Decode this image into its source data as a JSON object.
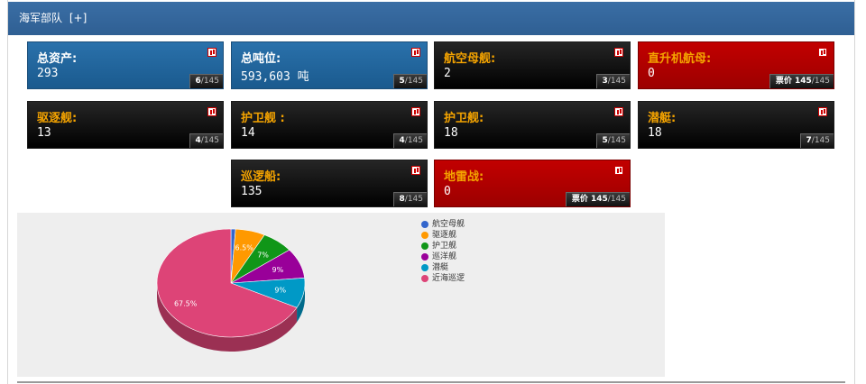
{
  "header": {
    "title": "海军部队",
    "toggle": "[+]"
  },
  "cards": [
    {
      "id": "total-assets",
      "label": "总资产:",
      "value": "293",
      "rank": "6",
      "total": "/145",
      "style": "blue"
    },
    {
      "id": "total-tonnage",
      "label": "总吨位:",
      "value": "593,603 吨",
      "rank": "5",
      "total": "/145",
      "style": "blue"
    },
    {
      "id": "aircraft-carriers",
      "label": "航空母舰:",
      "value": "2",
      "rank": "3",
      "total": "/145",
      "style": "black"
    },
    {
      "id": "helicopter-carriers",
      "label": "直升机航母:",
      "value": "0",
      "rank": "票价 145",
      "total": "/145",
      "style": "red"
    },
    {
      "id": "destroyers",
      "label": "驱逐舰:",
      "value": "13",
      "rank": "4",
      "total": "/145",
      "style": "black"
    },
    {
      "id": "frigates",
      "label": "护卫舰 :",
      "value": "14",
      "rank": "4",
      "total": "/145",
      "style": "black"
    },
    {
      "id": "corvettes",
      "label": "护卫舰:",
      "value": "18",
      "rank": "5",
      "total": "/145",
      "style": "black"
    },
    {
      "id": "submarines",
      "label": "潜艇:",
      "value": "18",
      "rank": "7",
      "total": "/145",
      "style": "black"
    },
    {
      "id": "patrol-vessels",
      "label": "巡逻船:",
      "value": "135",
      "rank": "8",
      "total": "/145",
      "style": "black"
    },
    {
      "id": "mine-warfare",
      "label": "地雷战:",
      "value": "0",
      "rank": "票价 145",
      "total": "/145",
      "style": "red"
    }
  ],
  "chart_data": {
    "type": "pie",
    "slices": [
      {
        "name": "航空母舰",
        "value": 1,
        "label": "",
        "color": "#3366cc"
      },
      {
        "name": "驱逐舰",
        "value": 6.5,
        "label": "6.5%",
        "color": "#ff9900"
      },
      {
        "name": "护卫舰",
        "value": 7,
        "label": "7%",
        "color": "#109618"
      },
      {
        "name": "巡洋舰",
        "value": 9,
        "label": "9%",
        "color": "#990099"
      },
      {
        "name": "潜艇",
        "value": 9,
        "label": "9%",
        "color": "#0099c6"
      },
      {
        "name": "近海巡逻",
        "value": 67.5,
        "label": "67.5%",
        "color": "#dd4477"
      }
    ],
    "legend": "right"
  }
}
